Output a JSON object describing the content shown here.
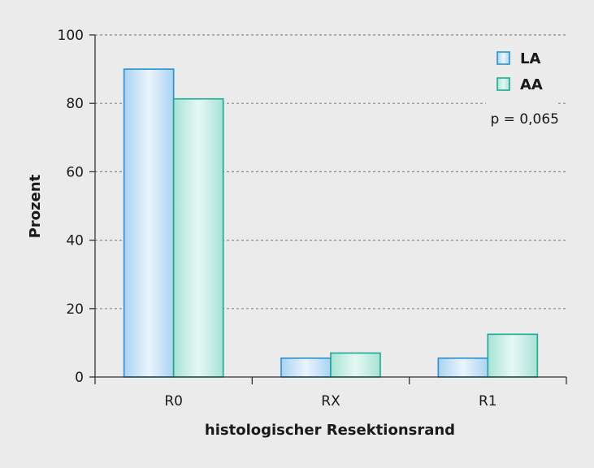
{
  "chart_data": {
    "type": "bar",
    "categories": [
      "R0",
      "RX",
      "R1"
    ],
    "series": [
      {
        "name": "LA",
        "values": [
          90,
          5.5,
          5.5
        ],
        "color": "#2a8fd0"
      },
      {
        "name": "AA",
        "values": [
          81.3,
          7,
          12.5
        ],
        "color": "#1aaa94"
      }
    ],
    "xlabel": "histologischer Resektionsrand",
    "ylabel": "Prozent",
    "ylim": [
      0,
      100
    ],
    "yticks": [
      0,
      20,
      40,
      60,
      80,
      100
    ],
    "grid": true,
    "legend_position": "top-right",
    "annotation": "p = 0,065"
  }
}
